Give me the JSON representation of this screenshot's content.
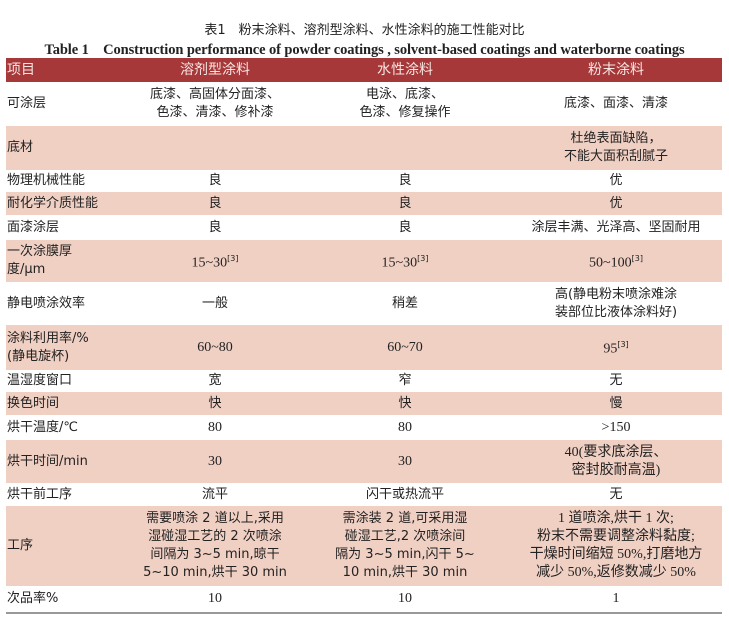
{
  "caption": {
    "zh": "表1　粉末涂料、溶剂型涂料、水性涂料的施工性能对比",
    "en": "Table 1　Construction performance of powder coatings , solvent-based coatings and waterborne coatings"
  },
  "colors": {
    "header_bg": "#a6383a",
    "stripe": "#f1d0c4"
  },
  "headers": [
    "项目",
    "溶剂型涂料",
    "水性涂料",
    "粉末涂料"
  ],
  "rows": [
    {
      "item": "可涂层",
      "solvent": "底漆、高固体分面漆、\n色漆、清漆、修补漆",
      "water": "电泳、底漆、\n色漆、修复操作",
      "powder": "底漆、面漆、清漆"
    },
    {
      "item": "底材",
      "solvent": "",
      "water": "",
      "powder": "杜绝表面缺陷，\n不能大面积刮腻子"
    },
    {
      "item": "物理机械性能",
      "solvent": "良",
      "water": "良",
      "powder": "优"
    },
    {
      "item": "耐化学介质性能",
      "solvent": "良",
      "water": "良",
      "powder": "优"
    },
    {
      "item": "面漆涂层",
      "solvent": "良",
      "water": "良",
      "powder": "涂层丰满、光泽高、坚固耐用"
    },
    {
      "item": "一次涂膜厚\n度/μm",
      "solvent": "15~30",
      "solvent_ref": "[3]",
      "water": "15~30",
      "water_ref": "[3]",
      "powder": "50~100",
      "powder_ref": "[3]"
    },
    {
      "item": "静电喷涂效率",
      "solvent": "一般",
      "water": "稍差",
      "powder": "高(静电粉末喷涂难涂\n装部位比液体涂料好)"
    },
    {
      "item": "涂料利用率/%\n(静电旋杯)",
      "solvent": "60~80",
      "water": "60~70",
      "powder": "95",
      "powder_ref": "[3]"
    },
    {
      "item": "温湿度窗口",
      "solvent": "宽",
      "water": "窄",
      "powder": "无"
    },
    {
      "item": "换色时间",
      "solvent": "快",
      "water": "快",
      "powder": "慢"
    },
    {
      "item": "烘干温度/℃",
      "solvent": "80",
      "water": "80",
      "powder": ">150"
    },
    {
      "item": "烘干时间/min",
      "solvent": "30",
      "water": "30",
      "powder": "40(要求底涂层、\n密封胶耐高温)"
    },
    {
      "item": "烘干前工序",
      "solvent": "流平",
      "water": "闪干或热流平",
      "powder": "无"
    },
    {
      "item": "工序",
      "solvent": "需要喷涂 2 道以上,采用\n湿碰湿工艺的 2 次喷涂\n间隔为 3~5 min,晾干\n5~10 min,烘干 30 min",
      "water": "需涂装 2 道,可采用湿\n碰湿工艺,2 次喷涂间\n隔为 3~5 min,闪干 5~\n10 min,烘干 30 min",
      "powder": "1 道喷涂,烘干 1 次;\n粉末不需要调整涂料黏度;\n干燥时间缩短 50%,打磨地方\n减少 50%,返修数减少 50%"
    },
    {
      "item": "次品率%",
      "solvent": "10",
      "water": "10",
      "powder": "1"
    }
  ]
}
